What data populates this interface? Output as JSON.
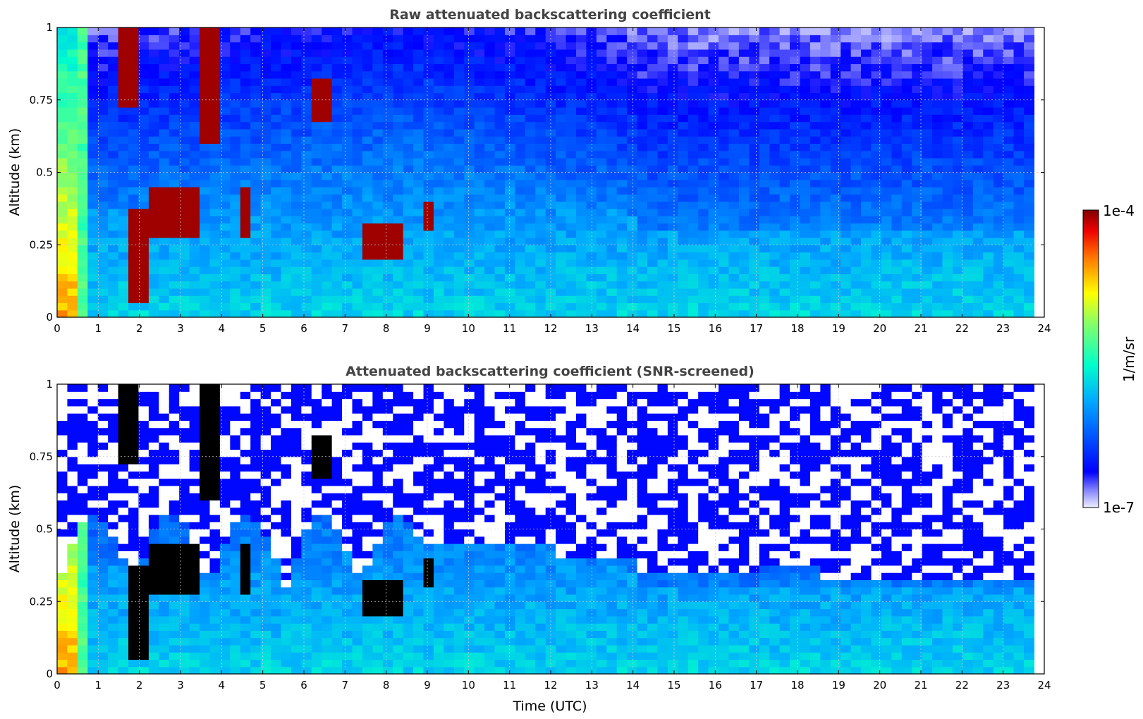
{
  "chart_data": [
    {
      "type": "heatmap",
      "title": "Raw attenuated backscattering coefficient",
      "xlabel": "",
      "ylabel": "Altitude (km)",
      "xlim": [
        0,
        24
      ],
      "ylim": [
        0,
        1
      ],
      "xticks": [
        "0",
        "1",
        "2",
        "3",
        "4",
        "5",
        "6",
        "7",
        "8",
        "9",
        "10",
        "11",
        "12",
        "13",
        "14",
        "15",
        "16",
        "17",
        "18",
        "19",
        "20",
        "21",
        "22",
        "23",
        "24"
      ],
      "yticks": [
        "0",
        "0.25",
        "0.5",
        "0.75",
        "1"
      ],
      "grid": true,
      "data_end_time": 23.75,
      "screened": false,
      "features": [
        {
          "kind": "cloud",
          "t0": 1.45,
          "t1": 1.9,
          "z0": 0.72,
          "z1": 1.0
        },
        {
          "kind": "cloud",
          "t0": 1.75,
          "t1": 2.35,
          "z0": 0.05,
          "z1": 0.38
        },
        {
          "kind": "cloud",
          "t0": 2.2,
          "t1": 3.5,
          "z0": 0.27,
          "z1": 0.45
        },
        {
          "kind": "cloud",
          "t0": 3.5,
          "t1": 3.9,
          "z0": 0.6,
          "z1": 1.0
        },
        {
          "kind": "cloud",
          "t0": 4.4,
          "t1": 4.7,
          "z0": 0.27,
          "z1": 0.45
        },
        {
          "kind": "cloud",
          "t0": 6.25,
          "t1": 6.65,
          "z0": 0.68,
          "z1": 0.82
        },
        {
          "kind": "cloud",
          "t0": 7.4,
          "t1": 8.3,
          "z0": 0.2,
          "z1": 0.33
        },
        {
          "kind": "cloud",
          "t0": 8.8,
          "t1": 9.1,
          "z0": 0.29,
          "z1": 0.4
        }
      ]
    },
    {
      "type": "heatmap",
      "title": "Attenuated backscattering coefficient (SNR-screened)",
      "xlabel": "Time (UTC)",
      "ylabel": "Altitude (km)",
      "xlim": [
        0,
        24
      ],
      "ylim": [
        0,
        1
      ],
      "xticks": [
        "0",
        "1",
        "2",
        "3",
        "4",
        "5",
        "6",
        "7",
        "8",
        "9",
        "10",
        "11",
        "12",
        "13",
        "14",
        "15",
        "16",
        "17",
        "18",
        "19",
        "20",
        "21",
        "22",
        "23",
        "24"
      ],
      "yticks": [
        "0",
        "0.25",
        "0.5",
        "0.75",
        "1"
      ],
      "grid": true,
      "data_end_time": 23.75,
      "screened": true,
      "features": [
        {
          "kind": "cloud",
          "t0": 1.45,
          "t1": 1.9,
          "z0": 0.72,
          "z1": 1.0
        },
        {
          "kind": "cloud",
          "t0": 1.75,
          "t1": 2.35,
          "z0": 0.05,
          "z1": 0.38
        },
        {
          "kind": "cloud",
          "t0": 2.2,
          "t1": 3.5,
          "z0": 0.27,
          "z1": 0.45
        },
        {
          "kind": "cloud",
          "t0": 3.5,
          "t1": 3.9,
          "z0": 0.6,
          "z1": 1.0
        },
        {
          "kind": "cloud",
          "t0": 4.4,
          "t1": 4.7,
          "z0": 0.27,
          "z1": 0.45
        },
        {
          "kind": "cloud",
          "t0": 6.25,
          "t1": 6.65,
          "z0": 0.68,
          "z1": 0.82
        },
        {
          "kind": "cloud",
          "t0": 7.4,
          "t1": 8.3,
          "z0": 0.2,
          "z1": 0.33
        },
        {
          "kind": "cloud",
          "t0": 8.8,
          "t1": 9.1,
          "z0": 0.29,
          "z1": 0.4
        }
      ]
    }
  ],
  "colorbar": {
    "max_label": "1e-4",
    "min_label": "1e-7",
    "unit_label": "1/m/sr",
    "scale": "log",
    "colormap": "jet",
    "range": [
      1e-07,
      0.0001
    ]
  },
  "colors": {
    "missing": "#ffffff",
    "saturated_screened": "#000000",
    "grid": "#cccccc"
  }
}
